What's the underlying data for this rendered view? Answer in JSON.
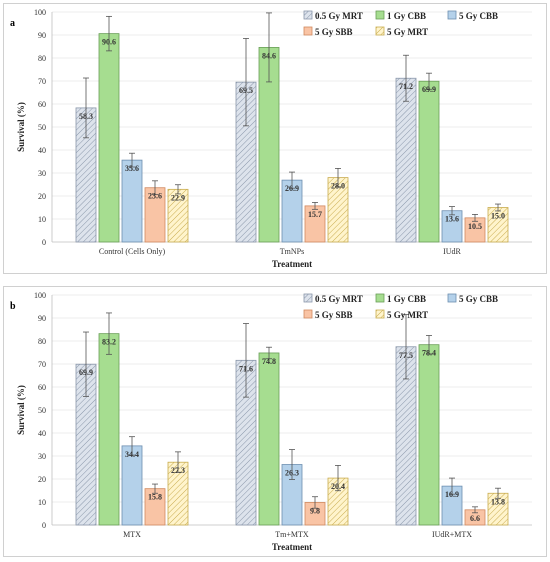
{
  "colors": {
    "0.5 Gy MRT": {
      "fill": "#dde3ec",
      "stroke": "#8a97aa",
      "pattern": "hatch-gray"
    },
    "1 Gy CBB": {
      "fill": "#a6dd90",
      "stroke": "#6a9f57",
      "pattern": "none"
    },
    "5 Gy CBB": {
      "fill": "#b4d1ea",
      "stroke": "#6d8fb0",
      "pattern": "none"
    },
    "5 Gy SBB": {
      "fill": "#f9c4a5",
      "stroke": "#d1895f",
      "pattern": "none"
    },
    "5 Gy MRT": {
      "fill": "#fff4cc",
      "stroke": "#c9ac4f",
      "pattern": "hatch-yellow"
    }
  },
  "chart_data": [
    {
      "panel": "a",
      "type": "bar",
      "xlabel": "Treatment",
      "ylabel": "Survival (%)",
      "ylim": [
        0,
        100
      ],
      "yticks": [
        0,
        10,
        20,
        30,
        40,
        50,
        60,
        70,
        80,
        90,
        100
      ],
      "grid": "horizontal",
      "legend_position": "top-right",
      "categories": [
        "Control (Cells Only)",
        "TmNPs",
        "IUdR"
      ],
      "series": [
        {
          "name": "0.5 Gy MRT",
          "values": [
            58.3,
            69.5,
            71.2
          ],
          "errors": [
            13,
            19,
            10
          ],
          "labels": [
            "58.3",
            "69.5",
            "71.2"
          ]
        },
        {
          "name": "1 Gy CBB",
          "values": [
            90.6,
            84.6,
            69.9
          ],
          "errors": [
            7.5,
            15,
            3.5
          ],
          "labels": [
            "90.6",
            "84.6",
            "69.9"
          ]
        },
        {
          "name": "5 Gy CBB",
          "values": [
            35.6,
            26.9,
            13.6
          ],
          "errors": [
            3,
            3.5,
            1.8
          ],
          "labels": [
            "35.6",
            "26.9",
            "13.6"
          ]
        },
        {
          "name": "5 Gy SBB",
          "values": [
            23.6,
            15.7,
            10.5
          ],
          "errors": [
            3,
            1.5,
            1.5
          ],
          "labels": [
            "23.6",
            "15.7",
            "10.5"
          ]
        },
        {
          "name": "5 Gy MRT",
          "values": [
            22.9,
            28.0,
            15.0
          ],
          "errors": [
            2,
            4,
            1.5
          ],
          "labels": [
            "22.9",
            "28.0",
            "15.0"
          ]
        }
      ]
    },
    {
      "panel": "b",
      "type": "bar",
      "xlabel": "Treatment",
      "ylabel": "Survival (%)",
      "ylim": [
        0,
        100
      ],
      "yticks": [
        0,
        10,
        20,
        30,
        40,
        50,
        60,
        70,
        80,
        90,
        100
      ],
      "grid": "horizontal",
      "legend_position": "top-right",
      "categories": [
        "MTX",
        "Tm+MTX",
        "IUdR+MTX"
      ],
      "series": [
        {
          "name": "0.5 Gy MRT",
          "values": [
            69.9,
            71.6,
            77.5
          ],
          "errors": [
            14,
            16,
            14
          ],
          "labels": [
            "69.9",
            "71.6",
            "77.5"
          ]
        },
        {
          "name": "1 Gy CBB",
          "values": [
            83.2,
            74.8,
            78.4
          ],
          "errors": [
            9,
            2.5,
            4
          ],
          "labels": [
            "83.2",
            "74.8",
            "78.4"
          ]
        },
        {
          "name": "5 Gy CBB",
          "values": [
            34.4,
            26.3,
            16.9
          ],
          "errors": [
            4,
            6.5,
            3.5
          ],
          "labels": [
            "34.4",
            "26.3",
            "16.9"
          ]
        },
        {
          "name": "5 Gy SBB",
          "values": [
            15.8,
            9.8,
            6.6
          ],
          "errors": [
            2,
            2.5,
            1.3
          ],
          "labels": [
            "15.8",
            "9.8",
            "6.6"
          ]
        },
        {
          "name": "5 Gy MRT",
          "values": [
            27.3,
            20.4,
            13.8
          ],
          "errors": [
            4.5,
            5.5,
            2.2
          ],
          "labels": [
            "27.3",
            "20.4",
            "13.8"
          ]
        }
      ]
    }
  ]
}
